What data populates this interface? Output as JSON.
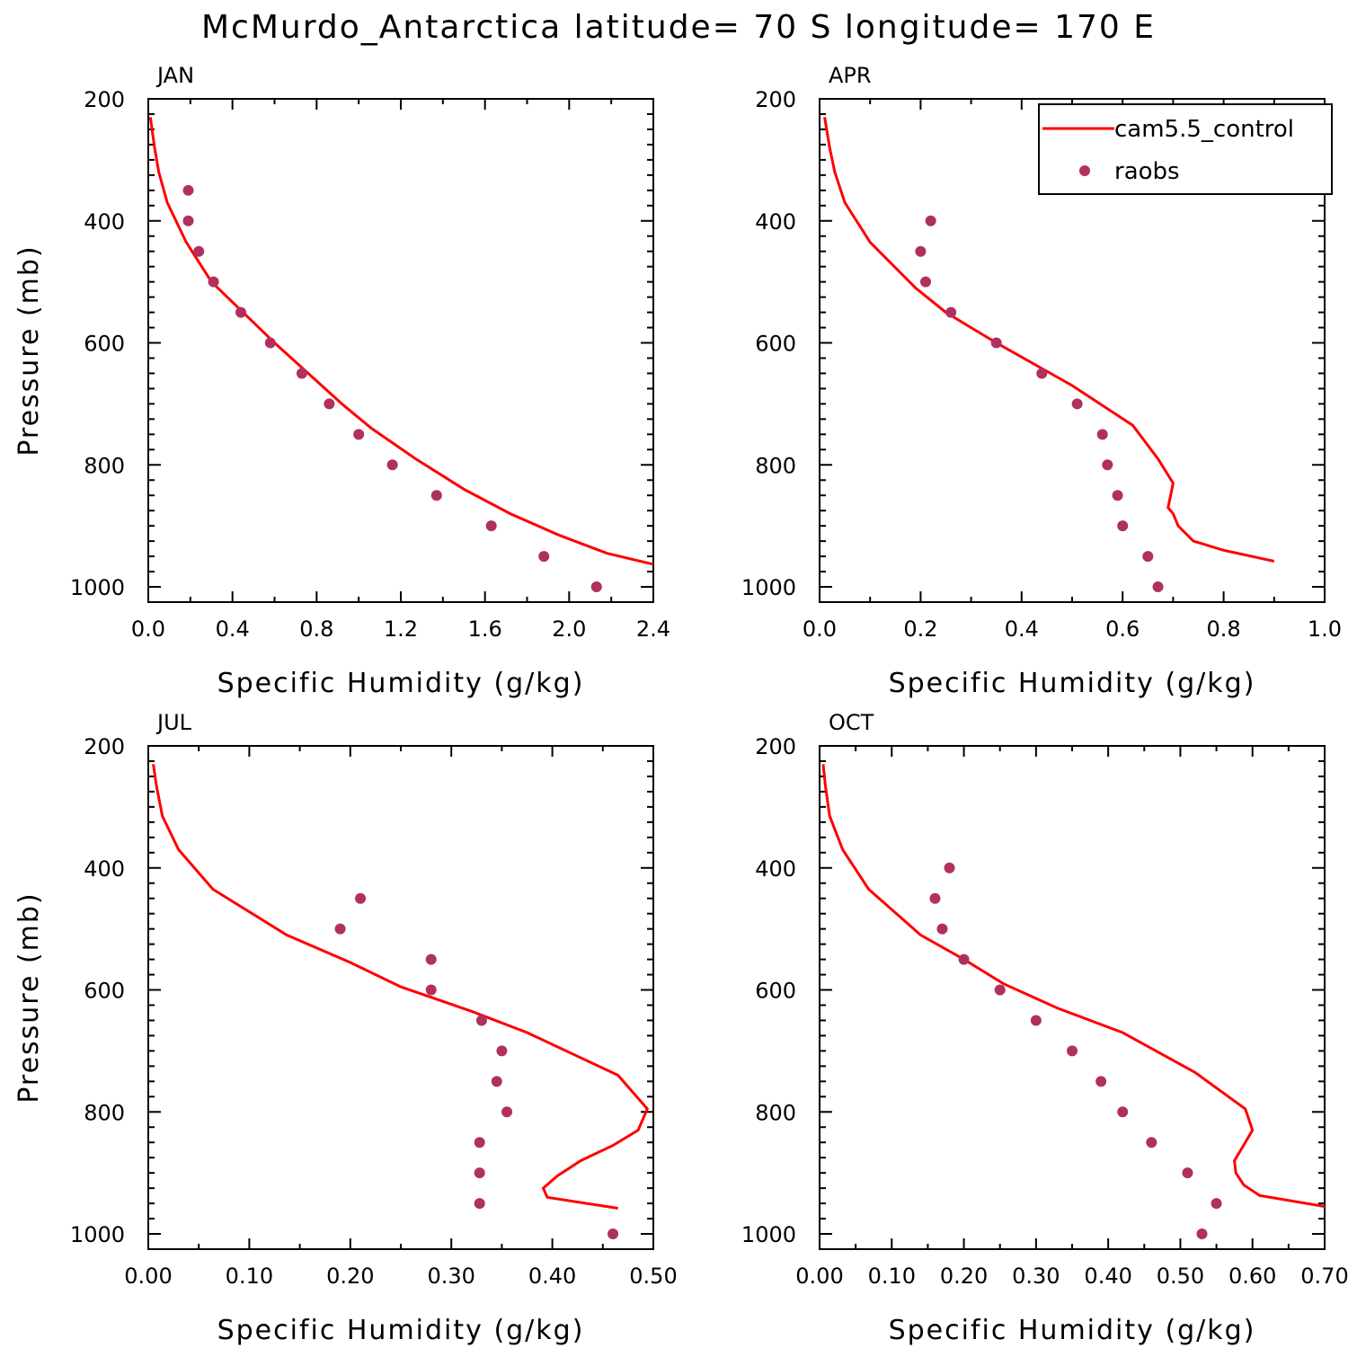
{
  "figure": {
    "title": "McMurdo_Antarctica  latitude= 70 S longitude= 170 E"
  },
  "legend": {
    "placement": "top-right of APR panel",
    "model_label": "cam5.5_control",
    "obs_label": "raobs"
  },
  "colors": {
    "model_line": "#ff0000",
    "obs_marker": "#b03060",
    "axes": "#000000"
  },
  "chart_data": [
    {
      "type": "line",
      "panel_label": "JAN",
      "xlabel": "Specific Humidity (g/kg)",
      "ylabel": "Pressure (mb)",
      "xlim": [
        0.0,
        2.4
      ],
      "ylim": [
        200,
        1025
      ],
      "y_inverted": true,
      "xticks": [
        "0.0",
        "0.4",
        "0.8",
        "1.2",
        "1.6",
        "2.0",
        "2.4"
      ],
      "yticks": [
        "200",
        "400",
        "600",
        "800",
        "1000"
      ],
      "series": [
        {
          "name": "cam5.5_control",
          "x": [
            0.01,
            0.03,
            0.05,
            0.09,
            0.18,
            0.3,
            0.45,
            0.6,
            0.76,
            0.92,
            1.06,
            1.27,
            1.5,
            1.72,
            1.95,
            2.18,
            2.4
          ],
          "y": [
            230,
            280,
            320,
            370,
            435,
            500,
            550,
            600,
            650,
            700,
            740,
            790,
            840,
            880,
            915,
            945,
            963
          ]
        },
        {
          "name": "raobs",
          "x": [
            0.19,
            0.19,
            0.24,
            0.31,
            0.44,
            0.58,
            0.73,
            0.86,
            1.0,
            1.16,
            1.37,
            1.63,
            1.88,
            2.13
          ],
          "y": [
            350,
            400,
            450,
            500,
            550,
            600,
            650,
            700,
            750,
            800,
            850,
            900,
            950,
            1000
          ]
        }
      ]
    },
    {
      "type": "line",
      "panel_label": "APR",
      "xlabel": "Specific Humidity (g/kg)",
      "ylabel": "",
      "xlim": [
        0.0,
        1.0
      ],
      "ylim": [
        200,
        1025
      ],
      "y_inverted": true,
      "xticks": [
        "0.0",
        "0.2",
        "0.4",
        "0.6",
        "0.8",
        "1.0"
      ],
      "yticks": [
        "200",
        "400",
        "600",
        "800",
        "1000"
      ],
      "series": [
        {
          "name": "cam5.5_control",
          "x": [
            0.01,
            0.02,
            0.03,
            0.05,
            0.1,
            0.19,
            0.25,
            0.35,
            0.5,
            0.62,
            0.67,
            0.7,
            0.69,
            0.7,
            0.71,
            0.74,
            0.8,
            0.9
          ],
          "y": [
            230,
            280,
            320,
            370,
            435,
            510,
            550,
            600,
            670,
            735,
            790,
            830,
            870,
            880,
            900,
            925,
            940,
            958
          ]
        },
        {
          "name": "raobs",
          "x": [
            0.22,
            0.2,
            0.21,
            0.26,
            0.35,
            0.44,
            0.51,
            0.56,
            0.57,
            0.59,
            0.6,
            0.65,
            0.67
          ],
          "y": [
            400,
            450,
            500,
            550,
            600,
            650,
            700,
            750,
            800,
            850,
            900,
            950,
            1000
          ]
        }
      ]
    },
    {
      "type": "line",
      "panel_label": "JUL",
      "xlabel": "Specific Humidity (g/kg)",
      "ylabel": "Pressure (mb)",
      "xlim": [
        0.0,
        0.5
      ],
      "ylim": [
        200,
        1025
      ],
      "y_inverted": true,
      "xticks": [
        "0.00",
        "0.10",
        "0.20",
        "0.30",
        "0.40",
        "0.50"
      ],
      "yticks": [
        "200",
        "400",
        "600",
        "800",
        "1000"
      ],
      "series": [
        {
          "name": "cam5.5_control",
          "x": [
            0.005,
            0.008,
            0.014,
            0.03,
            0.064,
            0.137,
            0.2,
            0.25,
            0.32,
            0.375,
            0.465,
            0.494,
            0.485,
            0.46,
            0.428,
            0.405,
            0.391,
            0.395,
            0.465
          ],
          "y": [
            230,
            265,
            315,
            370,
            435,
            510,
            555,
            595,
            635,
            670,
            740,
            795,
            830,
            855,
            880,
            905,
            925,
            940,
            958
          ]
        },
        {
          "name": "raobs",
          "x": [
            0.21,
            0.19,
            0.28,
            0.28,
            0.33,
            0.35,
            0.345,
            0.355,
            0.328,
            0.328,
            0.328,
            0.46
          ],
          "y": [
            450,
            500,
            550,
            600,
            650,
            700,
            750,
            800,
            850,
            900,
            950,
            1000
          ]
        }
      ]
    },
    {
      "type": "line",
      "panel_label": "OCT",
      "xlabel": "Specific Humidity (g/kg)",
      "ylabel": "",
      "xlim": [
        0.0,
        0.7
      ],
      "ylim": [
        200,
        1025
      ],
      "y_inverted": true,
      "xticks": [
        "0.00",
        "0.10",
        "0.20",
        "0.30",
        "0.40",
        "0.50",
        "0.60",
        "0.70"
      ],
      "yticks": [
        "200",
        "400",
        "600",
        "800",
        "1000"
      ],
      "series": [
        {
          "name": "cam5.5_control",
          "x": [
            0.005,
            0.008,
            0.014,
            0.032,
            0.068,
            0.14,
            0.2,
            0.255,
            0.33,
            0.42,
            0.52,
            0.59,
            0.6,
            0.585,
            0.575,
            0.577,
            0.588,
            0.61,
            0.7
          ],
          "y": [
            230,
            265,
            315,
            370,
            435,
            510,
            550,
            590,
            630,
            670,
            735,
            795,
            830,
            860,
            880,
            900,
            920,
            937,
            955
          ]
        },
        {
          "name": "raobs",
          "x": [
            0.18,
            0.16,
            0.17,
            0.2,
            0.25,
            0.3,
            0.35,
            0.39,
            0.42,
            0.46,
            0.51,
            0.55,
            0.53
          ],
          "y": [
            400,
            450,
            500,
            550,
            600,
            650,
            700,
            750,
            800,
            850,
            900,
            950,
            1000
          ]
        }
      ]
    }
  ]
}
